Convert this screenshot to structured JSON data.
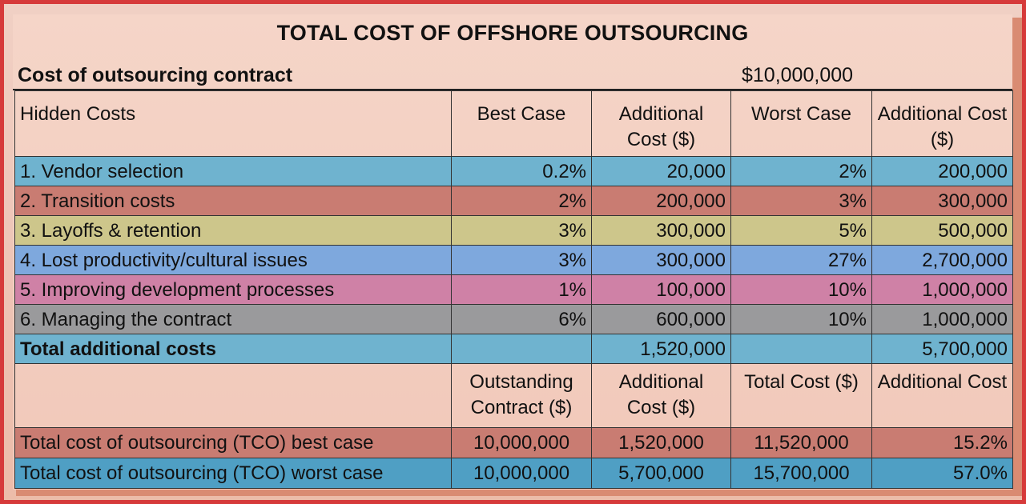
{
  "title": "TOTAL COST OF OFFSHORE OUTSOURCING",
  "contract": {
    "label": "Cost of outsourcing contract",
    "value": "$10,000,000"
  },
  "header": {
    "hidden_costs": "Hidden Costs",
    "best_case": "Best Case",
    "additional_cost_best": "Additional Cost ($)",
    "worst_case": "Worst Case",
    "additional_cost_worst": "Additional Cost ($)"
  },
  "rows": [
    {
      "label": "1. Vendor selection",
      "best_pct": "0.2%",
      "best_cost": "20,000",
      "worst_pct": "2%",
      "worst_cost": "200,000",
      "color": "#6fb3cf"
    },
    {
      "label": "2. Transition costs",
      "best_pct": "2%",
      "best_cost": "200,000",
      "worst_pct": "3%",
      "worst_cost": "300,000",
      "color": "#c97c72"
    },
    {
      "label": "3. Layoffs & retention",
      "best_pct": "3%",
      "best_cost": "300,000",
      "worst_pct": "5%",
      "worst_cost": "500,000",
      "color": "#cdc68b"
    },
    {
      "label": "4. Lost productivity/cultural issues",
      "best_pct": "3%",
      "best_cost": "300,000",
      "worst_pct": "27%",
      "worst_cost": "2,700,000",
      "color": "#7ea8dd"
    },
    {
      "label": "5. Improving development processes",
      "best_pct": "1%",
      "best_cost": "100,000",
      "worst_pct": "10%",
      "worst_cost": "1,000,000",
      "color": "#cf81a6"
    },
    {
      "label": "6. Managing the contract",
      "best_pct": "6%",
      "best_cost": "600,000",
      "worst_pct": "10%",
      "worst_cost": "1,000,000",
      "color": "#9a9a9c"
    }
  ],
  "total": {
    "label": "Total additional costs",
    "best_cost": "1,520,000",
    "worst_cost": "5,700,000"
  },
  "header2": {
    "outstanding_contract": "Outstanding Contract ($)",
    "additional_cost": "Additional Cost ($)",
    "total_cost": "Total Cost ($)",
    "additional_cost_pct": "Additional Cost"
  },
  "tco": [
    {
      "label": "Total cost of outsourcing (TCO) best case",
      "contract": "10,000,000",
      "additional": "1,520,000",
      "total": "11,520,000",
      "pct": "15.2%",
      "color": "#c97c72"
    },
    {
      "label": "Total cost of outsourcing (TCO) worst case",
      "contract": "10,000,000",
      "additional": "5,700,000",
      "total": "15,700,000",
      "pct": "57.0%",
      "color": "#4f9fc4"
    }
  ]
}
